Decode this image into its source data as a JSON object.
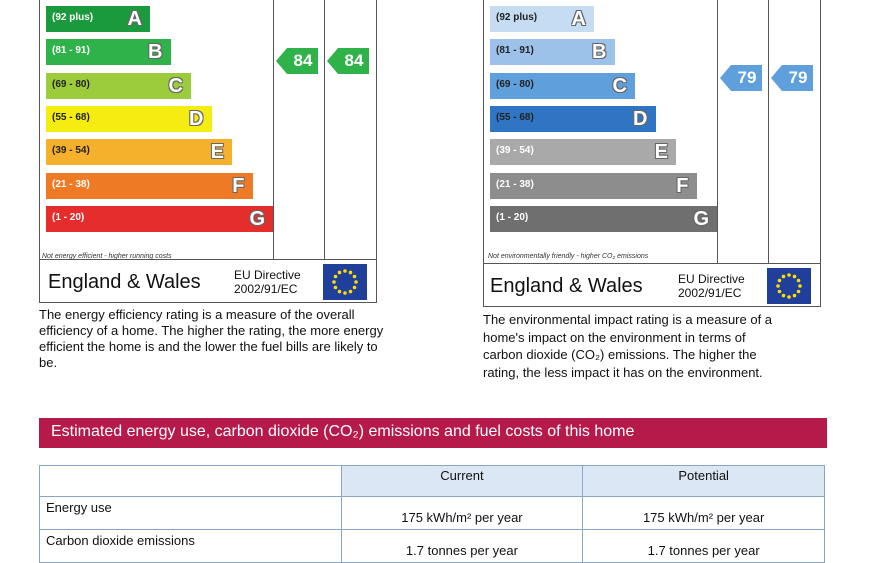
{
  "energy": {
    "bands": [
      {
        "range": "(92 plus)",
        "letter": "A",
        "color": "#1a9a3c",
        "range_color": "#ffffff",
        "letter_color": "#ffffff"
      },
      {
        "range": "(81 - 91)",
        "letter": "B",
        "color": "#2fb24a",
        "range_color": "#ffffff",
        "letter_color": "#ffffff"
      },
      {
        "range": "(69 - 80)",
        "letter": "C",
        "color": "#9ccc3b",
        "range_color": "#222222",
        "letter_color": "#ffffff"
      },
      {
        "range": "(55 - 68)",
        "letter": "D",
        "color": "#f5ec12",
        "range_color": "#222222",
        "letter_color": "#ffffff"
      },
      {
        "range": "(39 - 54)",
        "letter": "E",
        "color": "#f5b02c",
        "range_color": "#222222",
        "letter_color": "#ffffff"
      },
      {
        "range": "(21 - 38)",
        "letter": "F",
        "color": "#ee7a26",
        "range_color": "#ffffff",
        "letter_color": "#ffffff"
      },
      {
        "range": "(1 - 20)",
        "letter": "G",
        "color": "#e52d2b",
        "range_color": "#ffffff",
        "letter_color": "#ffffff"
      }
    ],
    "current": "84",
    "potential": "84",
    "arrow_color": "#2fb24a",
    "note": "Not energy efficient - higher running costs",
    "region": "England & Wales",
    "directive_line1": "EU Directive",
    "directive_line2": "2002/91/EC",
    "description": "The energy efficiency rating is a measure of the overall efficiency of a home. The higher the rating, the more energy efficient the home is and the lower the fuel bills are likely to be."
  },
  "environment": {
    "bands": [
      {
        "range": "(92 plus)",
        "letter": "A",
        "color": "#c6dcf2",
        "range_color": "#222222",
        "letter_color": "#ffffff"
      },
      {
        "range": "(81 - 91)",
        "letter": "B",
        "color": "#9cc2ea",
        "range_color": "#222222",
        "letter_color": "#ffffff"
      },
      {
        "range": "(69 - 80)",
        "letter": "C",
        "color": "#5f9fdc",
        "range_color": "#222222",
        "letter_color": "#ffffff"
      },
      {
        "range": "(55 - 68)",
        "letter": "D",
        "color": "#2f75c4",
        "range_color": "#222222",
        "letter_color": "#ffffff"
      },
      {
        "range": "(39 - 54)",
        "letter": "E",
        "color": "#a9a9a9",
        "range_color": "#ffffff",
        "letter_color": "#ffffff"
      },
      {
        "range": "(21 - 38)",
        "letter": "F",
        "color": "#8d8d8d",
        "range_color": "#ffffff",
        "letter_color": "#ffffff"
      },
      {
        "range": "(1 - 20)",
        "letter": "G",
        "color": "#6f6f6f",
        "range_color": "#ffffff",
        "letter_color": "#ffffff"
      }
    ],
    "current": "79",
    "potential": "79",
    "arrow_color": "#5f9fdc",
    "note": "Not environmentally friendly - higher CO₂ emissions",
    "region": "England & Wales",
    "directive_line1": "EU Directive",
    "directive_line2": "2002/91/EC",
    "description_l1": "The environmental impact rating is a measure of a",
    "description_l2": "home's impact on the environment in terms of",
    "description_l3": "carbon dioxide (CO₂) emissions. The higher the",
    "description_l4": "rating, the less impact it has on the environment."
  },
  "banner": "Estimated energy use, carbon dioxide (CO₂) emissions and fuel costs of this home",
  "table": {
    "headers": [
      "Current",
      "Potential"
    ],
    "rows": [
      {
        "label": "Energy use",
        "current": "175 kWh/m² per year",
        "potential": "175 kWh/m² per year"
      },
      {
        "label": "Carbon dioxide emissions",
        "current": "1.7 tonnes per year",
        "potential": "1.7 tonnes per year"
      }
    ]
  }
}
